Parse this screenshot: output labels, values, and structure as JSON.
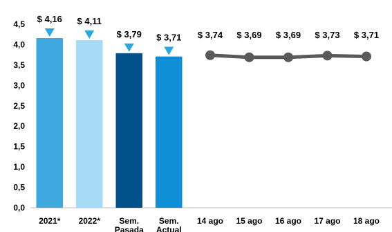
{
  "chart_data": {
    "type": "bar+line",
    "ylim": [
      0,
      4.5
    ],
    "yticks": [
      "0,0",
      "0,5",
      "1,0",
      "1,5",
      "2,0",
      "2,5",
      "3,0",
      "3,5",
      "4,0",
      "4,5"
    ],
    "ytick_values": [
      0,
      0.5,
      1.0,
      1.5,
      2.0,
      2.5,
      3.0,
      3.5,
      4.0,
      4.5
    ],
    "grid": false,
    "bars": {
      "categories": [
        "2021*",
        "2022*",
        "Sem. Pasada",
        "Sem. Actual"
      ],
      "category_lines": [
        [
          "2021*"
        ],
        [
          "2022*"
        ],
        [
          "Sem.",
          "Pasada"
        ],
        [
          "Sem.",
          "Actual"
        ]
      ],
      "values": [
        4.16,
        4.11,
        3.79,
        3.71
      ],
      "labels": [
        "$ 4,16",
        "$ 4,11",
        "$ 3,79",
        "$ 3,71"
      ],
      "colors": [
        "#3fa9df",
        "#a6daf5",
        "#00508a",
        "#0e8fd6"
      ],
      "marker": "down-triangle",
      "marker_color": "#29a8e0"
    },
    "line": {
      "categories": [
        "14 ago",
        "15 ago",
        "16 ago",
        "17 ago",
        "18 ago"
      ],
      "values": [
        3.74,
        3.69,
        3.69,
        3.73,
        3.71
      ],
      "labels": [
        "$ 3,74",
        "$ 3,69",
        "$ 3,69",
        "$ 3,73",
        "$ 3,71"
      ],
      "color": "#595959"
    }
  }
}
